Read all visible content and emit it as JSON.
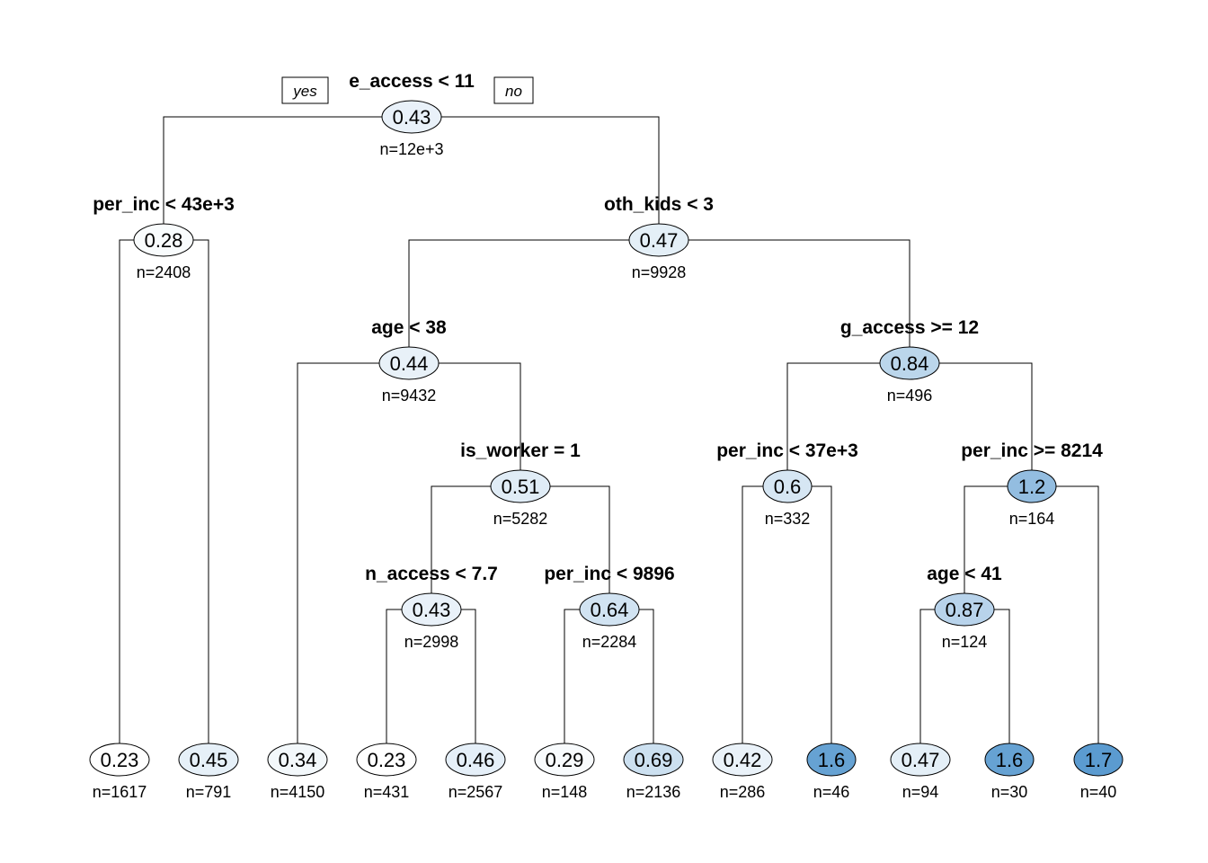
{
  "tree": {
    "branch_labels": {
      "yes": "yes",
      "no": "no"
    },
    "color_scale": {
      "low": "#ffffff",
      "high": "#5b9bd0",
      "min_value": 0.23,
      "max_value": 1.7
    },
    "nodes": [
      {
        "id": 1,
        "split": "e_access < 11",
        "value": "0.43",
        "n": "n=12e+3"
      },
      {
        "id": 2,
        "split": "per_inc < 43e+3",
        "value": "0.28",
        "n": "n=2408"
      },
      {
        "id": 3,
        "split": "oth_kids < 3",
        "value": "0.47",
        "n": "n=9928"
      },
      {
        "id": 6,
        "split": "age < 38",
        "value": "0.44",
        "n": "n=9432"
      },
      {
        "id": 7,
        "split": "g_access >= 12",
        "value": "0.84",
        "n": "n=496"
      },
      {
        "id": 13,
        "split": "is_worker = 1",
        "value": "0.51",
        "n": "n=5282"
      },
      {
        "id": 14,
        "split": "per_inc < 37e+3",
        "value": "0.6",
        "n": "n=332"
      },
      {
        "id": 15,
        "split": "per_inc >= 8214",
        "value": "1.2",
        "n": "n=164"
      },
      {
        "id": 26,
        "split": "n_access < 7.7",
        "value": "0.43",
        "n": "n=2998"
      },
      {
        "id": 27,
        "split": "per_inc < 9896",
        "value": "0.64",
        "n": "n=2284"
      },
      {
        "id": 30,
        "split": "age < 41",
        "value": "0.87",
        "n": "n=124"
      }
    ],
    "leaves": [
      {
        "value": "0.23",
        "n": "n=1617"
      },
      {
        "value": "0.45",
        "n": "n=791"
      },
      {
        "value": "0.34",
        "n": "n=4150"
      },
      {
        "value": "0.23",
        "n": "n=431"
      },
      {
        "value": "0.46",
        "n": "n=2567"
      },
      {
        "value": "0.29",
        "n": "n=148"
      },
      {
        "value": "0.69",
        "n": "n=2136"
      },
      {
        "value": "0.42",
        "n": "n=286"
      },
      {
        "value": "1.6",
        "n": "n=46"
      },
      {
        "value": "0.47",
        "n": "n=94"
      },
      {
        "value": "1.6",
        "n": "n=30"
      },
      {
        "value": "1.7",
        "n": "n=40"
      }
    ]
  }
}
